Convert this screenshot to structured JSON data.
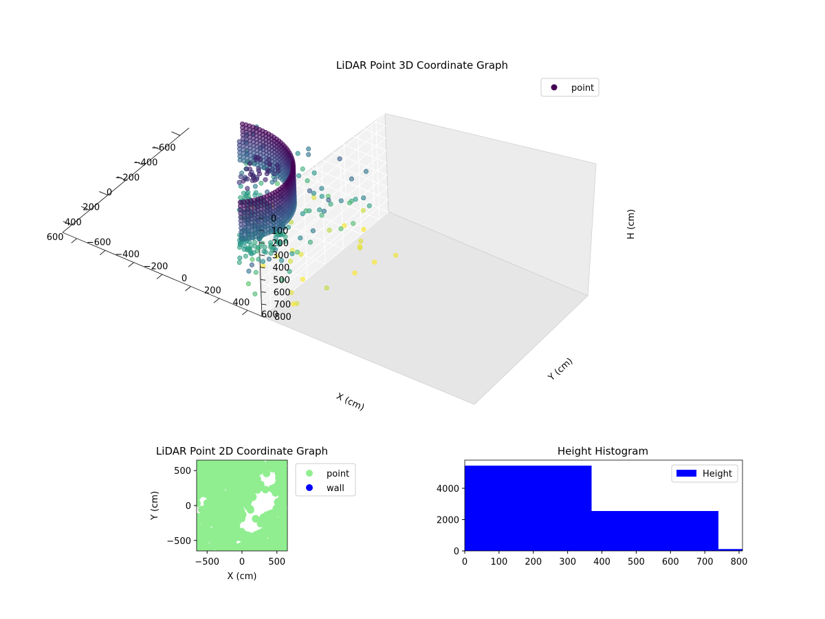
{
  "chart_data": [
    {
      "type": "scatter3d",
      "title": "LiDAR Point 3D Coordinate Graph",
      "xlabel": "X (cm)",
      "ylabel": "Y (cm)",
      "zlabel": "H (cm)",
      "x_ticks": [
        "−600",
        "−400",
        "−200",
        "0",
        "200",
        "400",
        "600"
      ],
      "y_ticks": [
        "−600",
        "−400",
        "−200",
        "0",
        "200",
        "400",
        "600"
      ],
      "z_ticks": [
        "0",
        "100",
        "200",
        "300",
        "400",
        "500",
        "600",
        "700",
        "800"
      ],
      "xlim": [
        -700,
        700
      ],
      "ylim": [
        -700,
        700
      ],
      "zlim": [
        800,
        0
      ],
      "z_inverted": true,
      "colormap": "viridis",
      "grid": true,
      "legend": {
        "position": "upper-right",
        "entries": [
          {
            "label": "point",
            "color": "#440154"
          }
        ]
      },
      "series": [
        {
          "name": "point",
          "shape": "ring-wall",
          "center": [
            180,
            100
          ],
          "radius": 430,
          "h_range": [
            150,
            450
          ]
        },
        {
          "name": "point",
          "shape": "ring-floor",
          "center": [
            180,
            100
          ],
          "radius": 400,
          "h": 650
        },
        {
          "name": "point",
          "shape": "scattered",
          "h_range": [
            400,
            800
          ],
          "count": 260
        }
      ]
    },
    {
      "type": "scatter",
      "title": "LiDAR Point 2D Coordinate Graph",
      "xlabel": "X (cm)",
      "ylabel": "Y (cm)",
      "x_ticks": [
        "−500",
        "0",
        "500"
      ],
      "y_ticks": [
        "−500",
        "0",
        "500"
      ],
      "xlim": [
        -650,
        650
      ],
      "ylim": [
        -650,
        650
      ],
      "legend": {
        "position": "outside-right",
        "entries": [
          {
            "label": "point",
            "color": "#90ee90"
          },
          {
            "label": "wall",
            "color": "#0000ff"
          }
        ]
      }
    },
    {
      "type": "histogram",
      "title": "Height Histogram",
      "x_ticks": [
        "0",
        "100",
        "200",
        "300",
        "400",
        "500",
        "600",
        "700",
        "800"
      ],
      "y_ticks": [
        "0",
        "2000",
        "4000"
      ],
      "xlim": [
        0,
        810
      ],
      "ylim": [
        0,
        5800
      ],
      "bins": [
        {
          "start": 0,
          "end": 370,
          "count": 5450
        },
        {
          "start": 370,
          "end": 740,
          "count": 2550
        },
        {
          "start": 740,
          "end": 810,
          "count": 120
        }
      ],
      "color": "#0000ff",
      "legend": {
        "position": "upper-right",
        "entries": [
          {
            "label": "Height",
            "color": "#0000ff"
          }
        ]
      }
    }
  ]
}
